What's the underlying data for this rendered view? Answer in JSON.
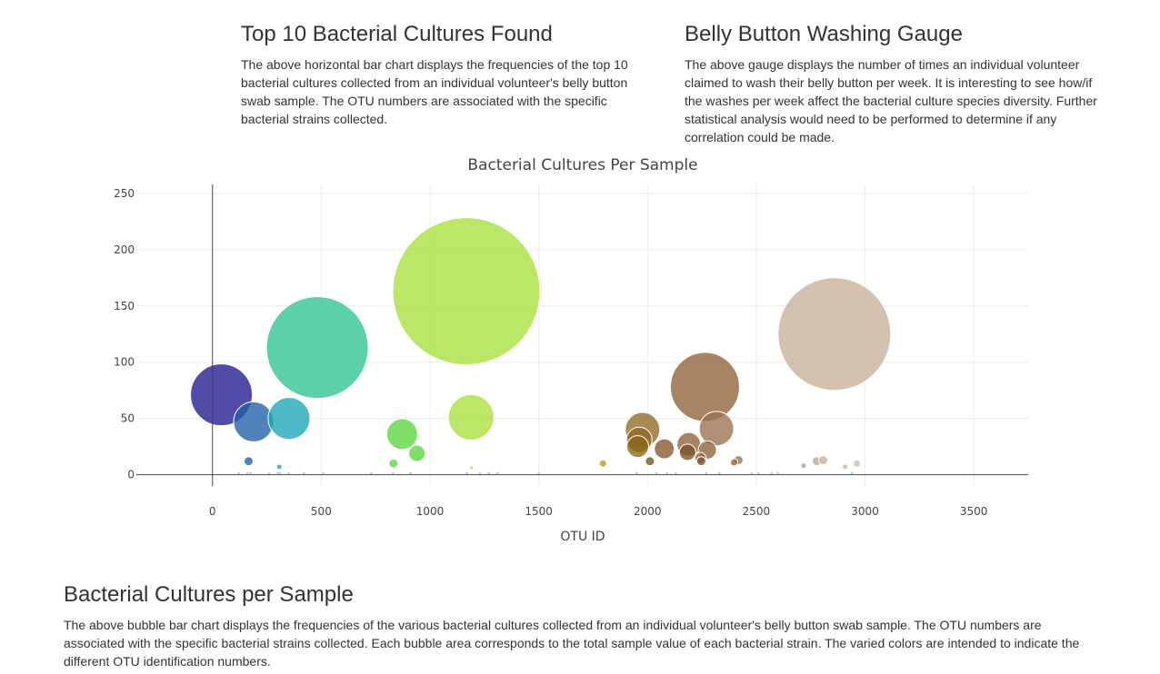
{
  "sections": {
    "top10": {
      "title": "Top 10 Bacterial Cultures Found",
      "description": "The above horizontal bar chart displays the frequencies of the top 10 bacterial cultures collected from an individual volunteer's belly button swab sample. The OTU numbers are associated with the specific bacterial strains collected."
    },
    "gauge": {
      "title": "Belly Button Washing Gauge",
      "description": "The above gauge displays the number of times an individual volunteer claimed to wash their belly button per week. It is interesting to see how/if the washes per week affect the bacterial culture species diversity. Further statistical analysis would need to be performed to determine if any correlation could be made."
    },
    "bubble": {
      "title": "Bacterial Cultures per Sample",
      "description": "The above bubble bar chart displays the frequencies of the various bacterial cultures collected from an individual volunteer's belly button swab sample. The OTU numbers are associated with the specific bacterial strains collected. Each bubble area corresponds to the total sample value of each bacterial strain. The varied colors are intended to indicate the different OTU identification numbers."
    }
  },
  "chart_data": {
    "type": "scatter",
    "title": "Bacterial Cultures Per Sample",
    "xlabel": "OTU ID",
    "ylabel": "",
    "xlim": [
      -350,
      3750
    ],
    "ylim": [
      -10,
      258
    ],
    "x_ticks": [
      0,
      500,
      1000,
      1500,
      2000,
      2500,
      3000,
      3500
    ],
    "y_ticks": [
      0,
      50,
      100,
      150,
      200,
      250
    ],
    "grid": true,
    "legend": false,
    "bubbles": [
      {
        "x": 41,
        "y": 71,
        "r": 34,
        "color": "#1f1a8f"
      },
      {
        "x": 189,
        "y": 47,
        "r": 22,
        "color": "#2060a8"
      },
      {
        "x": 352,
        "y": 50,
        "r": 23,
        "color": "#1ba7b8"
      },
      {
        "x": 482,
        "y": 113,
        "r": 56,
        "color": "#2ec193"
      },
      {
        "x": 166,
        "y": 12,
        "r": 5,
        "color": "#2060a8"
      },
      {
        "x": 307,
        "y": 7,
        "r": 3,
        "color": "#1ba7b8"
      },
      {
        "x": 872,
        "y": 36,
        "r": 17,
        "color": "#5cd63f"
      },
      {
        "x": 940,
        "y": 19,
        "r": 9,
        "color": "#5cd63f"
      },
      {
        "x": 832,
        "y": 10,
        "r": 5,
        "color": "#5cd63f"
      },
      {
        "x": 1167,
        "y": 163,
        "r": 81,
        "color": "#a8e03c"
      },
      {
        "x": 1189,
        "y": 51,
        "r": 25,
        "color": "#a8e03c"
      },
      {
        "x": 1190,
        "y": 6,
        "r": 2,
        "color": "#a8e03c"
      },
      {
        "x": 1795,
        "y": 10,
        "r": 4,
        "color": "#b89a26"
      },
      {
        "x": 1977,
        "y": 40,
        "r": 19,
        "color": "#8f6a23"
      },
      {
        "x": 1962,
        "y": 31,
        "r": 14,
        "color": "#8f6a23"
      },
      {
        "x": 1955,
        "y": 25,
        "r": 12,
        "color": "#8a6418"
      },
      {
        "x": 2011,
        "y": 12,
        "r": 5,
        "color": "#7a4f1c"
      },
      {
        "x": 2077,
        "y": 23,
        "r": 11,
        "color": "#85562a"
      },
      {
        "x": 2264,
        "y": 78,
        "r": 38,
        "color": "#8d6239"
      },
      {
        "x": 2317,
        "y": 41,
        "r": 19,
        "color": "#9a7252"
      },
      {
        "x": 2190,
        "y": 27,
        "r": 13,
        "color": "#8d6239"
      },
      {
        "x": 2184,
        "y": 20,
        "r": 9,
        "color": "#7d4f25"
      },
      {
        "x": 2275,
        "y": 22,
        "r": 10,
        "color": "#8d6239"
      },
      {
        "x": 2243,
        "y": 15,
        "r": 6,
        "color": "#8d6239"
      },
      {
        "x": 2247,
        "y": 12,
        "r": 5,
        "color": "#7d4f25"
      },
      {
        "x": 2418,
        "y": 13,
        "r": 5,
        "color": "#9a7252"
      },
      {
        "x": 2398,
        "y": 11,
        "r": 4,
        "color": "#8d6239"
      },
      {
        "x": 2859,
        "y": 125,
        "r": 62,
        "color": "#c8b09a"
      },
      {
        "x": 2718,
        "y": 8,
        "r": 3,
        "color": "#b89a80"
      },
      {
        "x": 2778,
        "y": 12,
        "r": 5,
        "color": "#c0a690"
      },
      {
        "x": 2808,
        "y": 13,
        "r": 5,
        "color": "#c8b09a"
      },
      {
        "x": 2908,
        "y": 7,
        "r": 3,
        "color": "#c8b09a"
      },
      {
        "x": 2963,
        "y": 10,
        "r": 4,
        "color": "#d0bca8"
      }
    ]
  }
}
